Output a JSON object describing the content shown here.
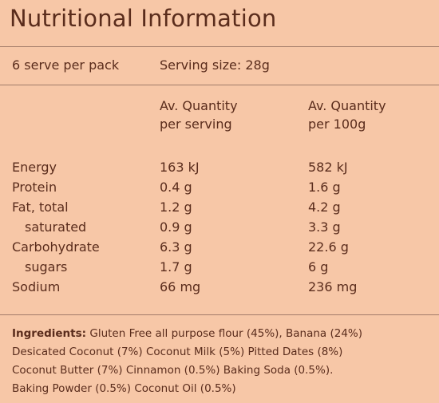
{
  "title": "Nutritional Information",
  "serves": "6 serve per pack",
  "serving_size": "Serving size: 28g",
  "headers": {
    "per_serving_line1": "Av. Quantity",
    "per_serving_line2": "per serving",
    "per_100g_line1": "Av. Quantity",
    "per_100g_line2": "per 100g"
  },
  "rows": [
    {
      "label": "Energy",
      "per_serving": "163 kJ",
      "per_100g": "582 kJ"
    },
    {
      "label": "Protein",
      "per_serving": "0.4 g",
      "per_100g": "1.6 g"
    },
    {
      "label": "Fat, total",
      "per_serving": "1.2 g",
      "per_100g": "4.2 g"
    },
    {
      "label": "saturated",
      "per_serving": "0.9 g",
      "per_100g": "3.3 g"
    },
    {
      "label": "Carbohydrate",
      "per_serving": "6.3 g",
      "per_100g": "22.6 g"
    },
    {
      "label": "sugars",
      "per_serving": "1.7 g",
      "per_100g": "6 g"
    },
    {
      "label": "Sodium",
      "per_serving": "66 mg",
      "per_100g": "236 mg"
    }
  ],
  "ingredients": {
    "label": "Ingredients:",
    "line1": " Gluten Free all purpose flour (45%), Banana (24%)",
    "line2": "Desicated Coconut (7%)  Coconut Milk (5%) Pitted Dates (8%)",
    "line3": "Coconut Butter (7%) Cinnamon (0.5%) Baking Soda (0.5%).",
    "line4": "Baking Powder (0.5%) Coconut Oil (0.5%)"
  },
  "colors": {
    "background": "#f7c7a7",
    "text": "#5a2c1c",
    "rule": "#a27b69"
  }
}
